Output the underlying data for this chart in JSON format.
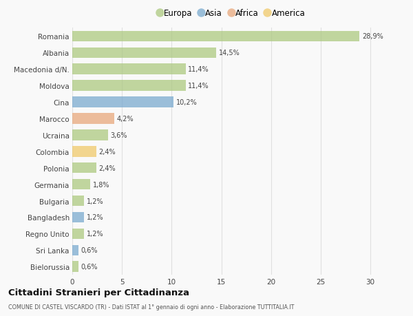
{
  "countries": [
    "Romania",
    "Albania",
    "Macedonia d/N.",
    "Moldova",
    "Cina",
    "Marocco",
    "Ucraina",
    "Colombia",
    "Polonia",
    "Germania",
    "Bulgaria",
    "Bangladesh",
    "Regno Unito",
    "Sri Lanka",
    "Bielorussia"
  ],
  "values": [
    28.9,
    14.5,
    11.4,
    11.4,
    10.2,
    4.2,
    3.6,
    2.4,
    2.4,
    1.8,
    1.2,
    1.2,
    1.2,
    0.6,
    0.6
  ],
  "labels": [
    "28,9%",
    "14,5%",
    "11,4%",
    "11,4%",
    "10,2%",
    "4,2%",
    "3,6%",
    "2,4%",
    "2,4%",
    "1,8%",
    "1,2%",
    "1,2%",
    "1,2%",
    "0,6%",
    "0,6%"
  ],
  "continents": [
    "Europa",
    "Europa",
    "Europa",
    "Europa",
    "Asia",
    "Africa",
    "Europa",
    "America",
    "Europa",
    "Europa",
    "Europa",
    "Asia",
    "Europa",
    "Asia",
    "Europa"
  ],
  "continent_colors": {
    "Europa": "#adc980",
    "Asia": "#7aaacf",
    "Africa": "#e8a87c",
    "America": "#f0c96b"
  },
  "legend_order": [
    "Europa",
    "Asia",
    "Africa",
    "America"
  ],
  "title": "Cittadini Stranieri per Cittadinanza",
  "subtitle": "COMUNE DI CASTEL VISCARDO (TR) - Dati ISTAT al 1° gennaio di ogni anno - Elaborazione TUTTITALIA.IT",
  "xlim": [
    0,
    32
  ],
  "xticks": [
    0,
    5,
    10,
    15,
    20,
    25,
    30
  ],
  "background_color": "#f9f9f9",
  "grid_color": "#e0e0e0",
  "bar_alpha": 0.75,
  "bar_height": 0.65
}
